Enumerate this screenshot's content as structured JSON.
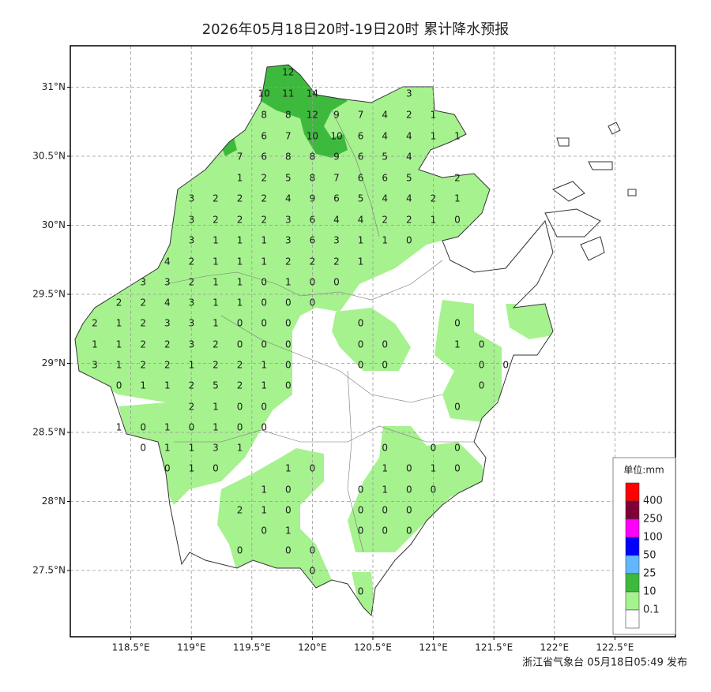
{
  "title": "2026年05月18日20时-19日20时 累计降水预报",
  "footer": "浙江省气象台 05月18日05:49 发布",
  "xlim": [
    118,
    123
  ],
  "ylim": [
    27.02,
    31.3
  ],
  "xticks": [
    {
      "value": 118.5,
      "label": "118.5°E"
    },
    {
      "value": 119,
      "label": "119°E"
    },
    {
      "value": 119.5,
      "label": "119.5°E"
    },
    {
      "value": 120,
      "label": "120°E"
    },
    {
      "value": 120.5,
      "label": "120.5°E"
    },
    {
      "value": 121,
      "label": "121°E"
    },
    {
      "value": 121.5,
      "label": "121.5°E"
    },
    {
      "value": 122,
      "label": "122°E"
    },
    {
      "value": 122.5,
      "label": "122.5°E"
    }
  ],
  "yticks": [
    {
      "value": 27.5,
      "label": "27.5°N"
    },
    {
      "value": 28,
      "label": "28°N"
    },
    {
      "value": 28.5,
      "label": "28.5°N"
    },
    {
      "value": 29,
      "label": "29°N"
    },
    {
      "value": 29.5,
      "label": "29.5°N"
    },
    {
      "value": 30,
      "label": "30°N"
    },
    {
      "value": 30.5,
      "label": "30.5°N"
    },
    {
      "value": 31,
      "label": "31°N"
    }
  ],
  "grid": true,
  "legend": {
    "title": "单位:mm",
    "levels": [
      400,
      250,
      100,
      50,
      25,
      10,
      0.1
    ],
    "colors": [
      "#ff0000",
      "#7f0038",
      "#ff00ff",
      "#0000ff",
      "#61b8ff",
      "#3dba3d",
      "#a6f28f",
      "#ffffff"
    ]
  },
  "stations": [
    [
      null,
      null,
      null,
      null,
      null,
      null,
      null,
      null,
      12,
      null,
      null,
      null,
      null,
      null,
      null,
      null,
      null,
      null
    ],
    [
      null,
      null,
      null,
      null,
      null,
      null,
      null,
      10,
      11,
      14,
      null,
      null,
      null,
      3,
      null,
      null,
      null,
      null
    ],
    [
      null,
      null,
      null,
      null,
      null,
      null,
      null,
      8,
      8,
      12,
      9,
      7,
      4,
      2,
      1,
      null,
      null,
      null
    ],
    [
      null,
      null,
      null,
      null,
      null,
      null,
      null,
      6,
      7,
      10,
      10,
      6,
      4,
      4,
      1,
      1,
      null,
      null
    ],
    [
      null,
      null,
      null,
      null,
      null,
      null,
      7,
      6,
      8,
      8,
      9,
      6,
      5,
      4,
      null,
      null,
      null,
      null
    ],
    [
      null,
      null,
      null,
      null,
      null,
      null,
      1,
      2,
      5,
      8,
      7,
      6,
      6,
      5,
      null,
      2,
      null,
      null
    ],
    [
      null,
      null,
      null,
      null,
      3,
      2,
      2,
      2,
      4,
      9,
      6,
      5,
      4,
      4,
      2,
      1,
      null,
      null
    ],
    [
      null,
      null,
      null,
      null,
      3,
      2,
      2,
      2,
      3,
      6,
      4,
      4,
      2,
      2,
      1,
      0,
      null,
      null
    ],
    [
      null,
      null,
      null,
      null,
      3,
      1,
      1,
      1,
      3,
      6,
      3,
      1,
      1,
      0,
      null,
      null,
      null,
      null
    ],
    [
      null,
      null,
      null,
      4,
      2,
      1,
      1,
      1,
      2,
      2,
      2,
      1,
      null,
      null,
      null,
      null,
      null,
      null
    ],
    [
      null,
      null,
      3,
      3,
      2,
      1,
      1,
      0,
      1,
      0,
      0,
      null,
      null,
      null,
      null,
      null,
      null,
      null
    ],
    [
      null,
      2,
      2,
      4,
      3,
      1,
      1,
      0,
      0,
      0,
      null,
      null,
      null,
      null,
      null,
      null,
      null,
      null
    ],
    [
      2,
      1,
      2,
      3,
      3,
      1,
      0,
      0,
      0,
      null,
      null,
      0,
      null,
      null,
      null,
      0,
      null,
      null
    ],
    [
      1,
      1,
      2,
      2,
      3,
      2,
      0,
      0,
      0,
      null,
      null,
      0,
      0,
      null,
      null,
      1,
      0,
      null
    ],
    [
      3,
      1,
      2,
      2,
      1,
      2,
      2,
      1,
      0,
      null,
      null,
      0,
      0,
      null,
      null,
      null,
      0,
      0
    ],
    [
      null,
      0,
      1,
      1,
      2,
      5,
      2,
      1,
      0,
      null,
      null,
      null,
      null,
      null,
      null,
      null,
      0,
      null
    ],
    [
      null,
      null,
      null,
      null,
      2,
      1,
      0,
      0,
      null,
      null,
      null,
      null,
      null,
      null,
      null,
      0,
      null,
      null
    ],
    [
      null,
      1,
      0,
      1,
      0,
      1,
      0,
      0,
      null,
      null,
      null,
      null,
      null,
      null,
      null,
      null,
      null,
      null
    ],
    [
      null,
      null,
      0,
      1,
      1,
      3,
      1,
      null,
      null,
      null,
      null,
      null,
      0,
      null,
      0,
      0,
      null,
      null
    ],
    [
      null,
      null,
      null,
      0,
      1,
      0,
      null,
      null,
      1,
      0,
      null,
      null,
      1,
      0,
      1,
      0,
      null,
      null
    ],
    [
      null,
      null,
      null,
      null,
      null,
      null,
      null,
      1,
      0,
      null,
      null,
      0,
      1,
      0,
      0,
      null,
      null,
      null
    ],
    [
      null,
      null,
      null,
      null,
      null,
      null,
      2,
      1,
      0,
      null,
      null,
      0,
      0,
      0,
      null,
      null,
      null,
      null
    ],
    [
      null,
      null,
      null,
      null,
      null,
      null,
      null,
      0,
      1,
      null,
      null,
      0,
      0,
      0,
      null,
      null,
      null,
      null
    ],
    [
      null,
      null,
      null,
      null,
      null,
      null,
      0,
      null,
      0,
      0,
      null,
      null,
      null,
      null,
      null,
      null,
      null,
      null
    ],
    [
      null,
      null,
      null,
      null,
      null,
      null,
      null,
      null,
      null,
      0,
      null,
      null,
      null,
      null,
      null,
      null,
      null,
      null
    ],
    [
      null,
      null,
      null,
      null,
      null,
      null,
      null,
      null,
      null,
      null,
      null,
      0,
      null,
      null,
      null,
      null,
      null,
      null
    ]
  ]
}
